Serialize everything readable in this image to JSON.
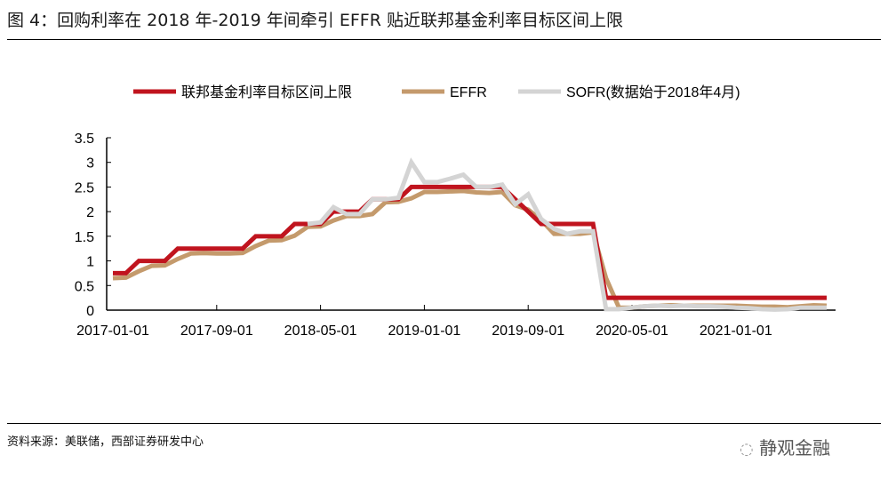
{
  "title": "图 4：回购利率在 2018 年-2019 年间牵引 EFFR 贴近联邦基金利率目标区间上限",
  "source": "资料来源：美联储，西部证券研发中心",
  "watermark": "静观金融",
  "chart_data": {
    "type": "line",
    "title": "",
    "xlabel": "",
    "ylabel": "",
    "x_start": "2017-01",
    "x_frequency": "monthly",
    "x_ticks": [
      "2017-01-01",
      "2017-09-01",
      "2018-05-01",
      "2019-01-01",
      "2019-09-01",
      "2020-05-01",
      "2021-01-01"
    ],
    "y_ticks": [
      "0",
      "0.5",
      "1",
      "1.5",
      "2",
      "2.5",
      "3",
      "3.5"
    ],
    "ylim": [
      0,
      3.5
    ],
    "grid": false,
    "legend_position": "top",
    "series": [
      {
        "name": "联邦基金利率目标区间上限",
        "color": "#c0141e",
        "start": "2017-01",
        "values": [
          0.75,
          0.75,
          1.0,
          1.0,
          1.0,
          1.25,
          1.25,
          1.25,
          1.25,
          1.25,
          1.25,
          1.5,
          1.5,
          1.5,
          1.75,
          1.75,
          1.75,
          2.0,
          2.0,
          2.0,
          2.25,
          2.25,
          2.25,
          2.5,
          2.5,
          2.5,
          2.5,
          2.5,
          2.5,
          2.5,
          2.5,
          2.25,
          2.0,
          1.75,
          1.75,
          1.75,
          1.75,
          1.75,
          0.25,
          0.25,
          0.25,
          0.25,
          0.25,
          0.25,
          0.25,
          0.25,
          0.25,
          0.25,
          0.25,
          0.25,
          0.25,
          0.25,
          0.25,
          0.25,
          0.25,
          0.25
        ]
      },
      {
        "name": "EFFR",
        "color": "#c49a6c",
        "start": "2017-01",
        "values": [
          0.65,
          0.66,
          0.79,
          0.9,
          0.91,
          1.04,
          1.15,
          1.16,
          1.15,
          1.15,
          1.16,
          1.3,
          1.41,
          1.42,
          1.51,
          1.69,
          1.7,
          1.82,
          1.91,
          1.91,
          1.95,
          2.19,
          2.2,
          2.27,
          2.4,
          2.4,
          2.41,
          2.42,
          2.39,
          2.38,
          2.4,
          2.13,
          2.04,
          1.83,
          1.55,
          1.55,
          1.55,
          1.58,
          0.65,
          0.05,
          0.05,
          0.08,
          0.09,
          0.1,
          0.09,
          0.09,
          0.09,
          0.09,
          0.09,
          0.08,
          0.07,
          0.07,
          0.06,
          0.08,
          0.1,
          0.09
        ]
      },
      {
        "name": "SOFR(数据始于2018年4月)",
        "color": "#d4d4d4",
        "start": "2018-04",
        "values": [
          1.75,
          1.78,
          2.09,
          1.95,
          1.95,
          2.25,
          2.25,
          2.28,
          3.0,
          2.6,
          2.6,
          2.67,
          2.75,
          2.5,
          2.5,
          2.55,
          2.15,
          2.35,
          1.85,
          1.65,
          1.55,
          1.6,
          1.6,
          0.02,
          0.02,
          0.05,
          0.08,
          0.09,
          0.08,
          0.09,
          0.08,
          0.08,
          0.07,
          0.05,
          0.04,
          0.02,
          0.01,
          0.02,
          0.05,
          0.05,
          0.05
        ]
      }
    ]
  }
}
